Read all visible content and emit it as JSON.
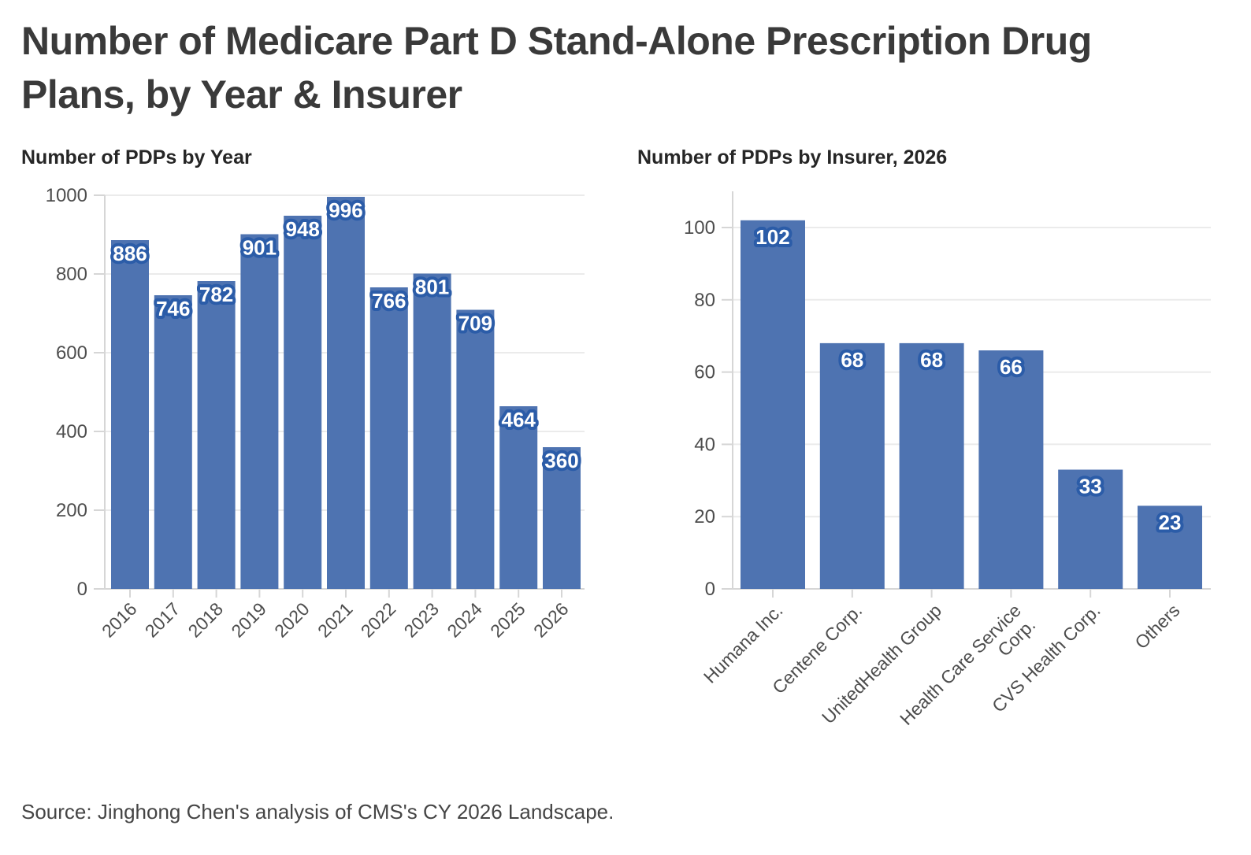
{
  "title": "Number of Medicare Part D Stand-Alone Prescription Drug Plans, by Year & Insurer",
  "source": "Source: Jinghong Chen's analysis of CMS's CY 2026 Landscape.",
  "colors": {
    "bar": "#4e73b1",
    "value_label_text": "#ffffff",
    "value_label_outline": "#2b5ca8",
    "grid": "#ebebeb",
    "axis": "#d6d6d6",
    "tick_label": "#4d4d4d"
  },
  "chart_data": [
    {
      "type": "bar",
      "title": "Number of PDPs by Year",
      "categories": [
        "2016",
        "2017",
        "2018",
        "2019",
        "2020",
        "2021",
        "2022",
        "2023",
        "2024",
        "2025",
        "2026"
      ],
      "values": [
        886,
        746,
        782,
        901,
        948,
        996,
        766,
        801,
        709,
        464,
        360
      ],
      "xlabel": "",
      "ylabel": "",
      "ylim": [
        0,
        1000
      ],
      "yticks": [
        0,
        200,
        400,
        600,
        800,
        1000
      ],
      "grid": true,
      "legend": false,
      "value_labels": true
    },
    {
      "type": "bar",
      "title": "Number of PDPs by Insurer, 2026",
      "categories": [
        "Humana Inc.",
        "Centene Corp.",
        "UnitedHealth Group",
        "Health Care Service\nCorp.",
        "CVS Health Corp.",
        "Others"
      ],
      "values": [
        102,
        68,
        68,
        66,
        33,
        23
      ],
      "xlabel": "",
      "ylabel": "",
      "ylim": [
        0,
        110
      ],
      "yticks": [
        0,
        20,
        40,
        60,
        80,
        100
      ],
      "grid": true,
      "legend": false,
      "value_labels": true
    }
  ]
}
